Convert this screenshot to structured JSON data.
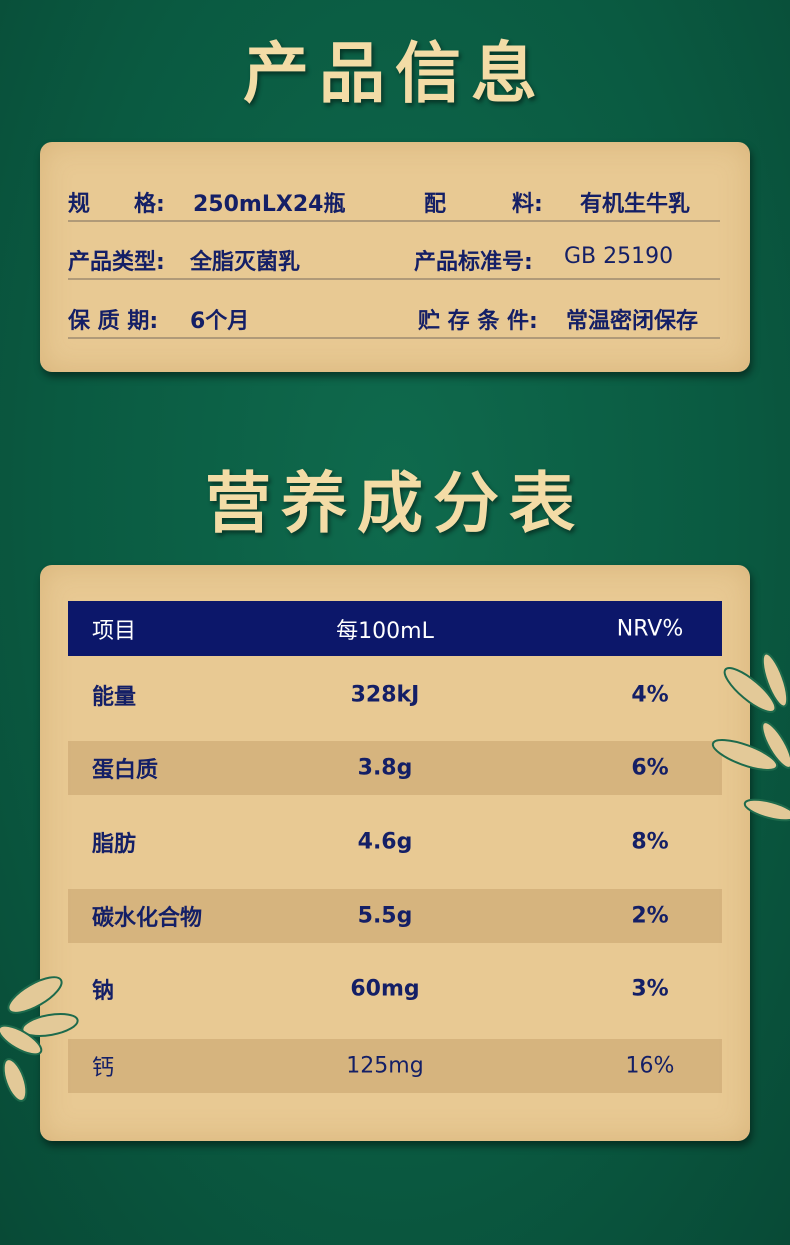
{
  "product_info": {
    "title": "产品信息",
    "rows": [
      {
        "left_label": "规　　格:",
        "left_value": "250mLX24瓶",
        "right_label": "配　　　料:",
        "right_value": "有机生牛乳"
      },
      {
        "left_label": "产品类型:",
        "left_value": "全脂灭菌乳",
        "right_label": "产品标准号:",
        "right_value": "GB 25190"
      },
      {
        "left_label": "保 质 期:",
        "left_value": "6个月",
        "right_label": "贮 存 条 件:",
        "right_value": "常温密闭保存"
      }
    ]
  },
  "nutrition": {
    "title": "营养成分表",
    "headers": [
      "项目",
      "每100mL",
      "NRV%"
    ],
    "rows": [
      [
        "能量",
        "328kJ",
        "4%"
      ],
      [
        "蛋白质",
        "3.8g",
        "6%"
      ],
      [
        "脂肪",
        "4.6g",
        "8%"
      ],
      [
        "碳水化合物",
        "5.5g",
        "2%"
      ],
      [
        "钠",
        "60mg",
        "3%"
      ],
      [
        "钙",
        "125mg",
        "16%"
      ]
    ]
  },
  "colors": {
    "background": "#0a5a41",
    "card": "#e8c993",
    "navy": "#0c176a",
    "title_gold": "#f3dca6"
  }
}
